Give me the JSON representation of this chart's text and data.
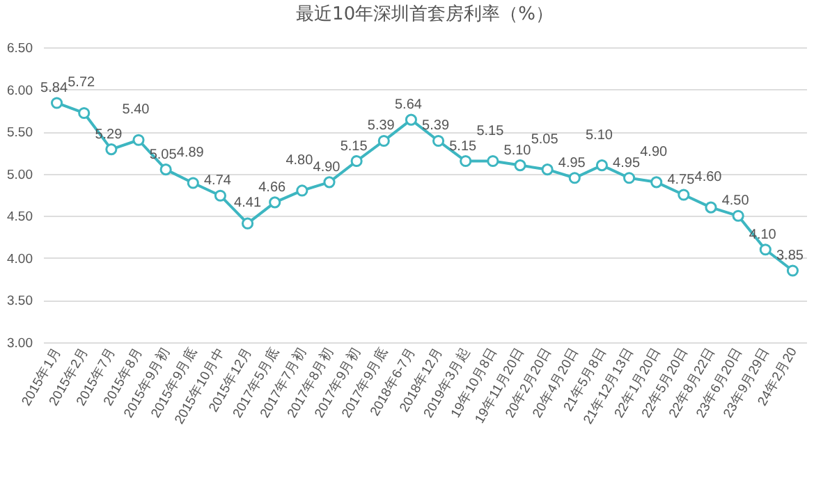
{
  "chart_data": {
    "type": "line",
    "title": "最近10年深圳首套房利率（%）",
    "categories": [
      "2015年1月",
      "2015年2月",
      "2015年7月",
      "2015年8月",
      "2015年9月初",
      "2015年9月底",
      "2015年10月中",
      "2015年12月",
      "2017年5月底",
      "2017年7月初",
      "2017年8月初",
      "2017年9月初",
      "2017年9月底",
      "2018年6-7月",
      "2018年12月",
      "2019年3月起",
      "19年10月8日",
      "19年11月20日",
      "20年2月20日",
      "20年4月20日",
      "21年5月8日",
      "21年12月13日",
      "22年1月20日",
      "22年5月20日",
      "22年8月22日",
      "23年6月20日",
      "23年9月29日",
      "24年2月20"
    ],
    "series": [
      {
        "color": "#3db6c1",
        "values": [
          5.84,
          5.72,
          5.29,
          5.4,
          5.05,
          4.89,
          4.74,
          4.41,
          4.66,
          4.8,
          4.9,
          5.15,
          5.39,
          5.64,
          5.39,
          5.15,
          5.15,
          5.1,
          5.05,
          4.95,
          5.1,
          4.95,
          4.9,
          4.75,
          4.6,
          4.5,
          4.1,
          3.85
        ],
        "value_labels": [
          "5.84",
          "5.72",
          "5.29",
          "5.40",
          "5.05",
          "4.89",
          "4.74",
          "4.41",
          "4.66",
          "4.80",
          "4.90",
          "5.15",
          "5.39",
          "5.64",
          "5.39",
          "5.15",
          "5.15",
          "5.10",
          "5.05",
          "4.95",
          "5.10",
          "4.95",
          "4.90",
          "4.75",
          "4.60",
          "4.50",
          "4.10",
          "3.85"
        ]
      }
    ],
    "ylim": [
      3,
      6.5
    ],
    "yticks": [
      {
        "value": 3,
        "label": "3.00"
      },
      {
        "value": 3.5,
        "label": "3.50"
      },
      {
        "value": 4,
        "label": "4.00"
      },
      {
        "value": 4.5,
        "label": "4.50"
      },
      {
        "value": 5,
        "label": "5.00"
      },
      {
        "value": 5.5,
        "label": "5.50"
      },
      {
        "value": 6,
        "label": "6.00"
      },
      {
        "value": 6.5,
        "label": "6.50"
      }
    ],
    "grid": "y",
    "marker": "circle",
    "line_style": "solid"
  }
}
